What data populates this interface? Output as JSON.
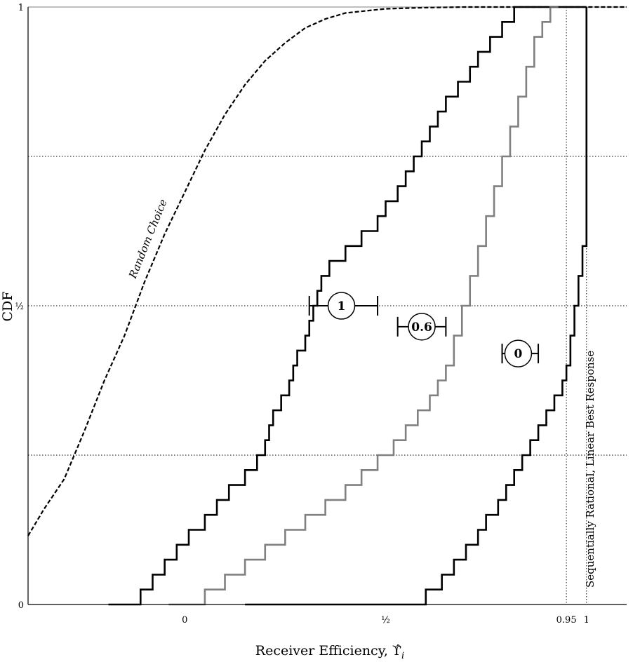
{
  "chart_data": {
    "type": "line",
    "title": "",
    "xlabel": "Receiver Efficiency, ϒ̂",
    "xlabel_subscript": "i",
    "ylabel": "CDF",
    "xlim": [
      -0.39,
      1.1
    ],
    "ylim": [
      0,
      1
    ],
    "x_ticks": [
      {
        "value": 0,
        "label": "0"
      },
      {
        "value": 0.5,
        "label": "½"
      },
      {
        "value": 0.95,
        "label": "0.95"
      },
      {
        "value": 1,
        "label": "1"
      }
    ],
    "y_ticks": [
      {
        "value": 0,
        "label": "0"
      },
      {
        "value": 0.5,
        "label": "½"
      },
      {
        "value": 1,
        "label": "1"
      }
    ],
    "grid": "dotted horizontal at 0.25, 0.5, 0.75",
    "reference_lines": [
      {
        "x": 0.95,
        "label": ""
      },
      {
        "x": 1.0,
        "label": "Sequentially Rational, Linear Best Response"
      }
    ],
    "series": [
      {
        "name": "Random Choice",
        "style": "dashed",
        "color": "#000000",
        "x": [
          -0.39,
          -0.35,
          -0.3,
          -0.25,
          -0.2,
          -0.15,
          -0.1,
          -0.05,
          0.0,
          0.05,
          0.1,
          0.15,
          0.2,
          0.25,
          0.3,
          0.35,
          0.4,
          0.5,
          0.6,
          0.7,
          0.8,
          1.1
        ],
        "y": [
          0.115,
          0.16,
          0.21,
          0.29,
          0.375,
          0.45,
          0.54,
          0.62,
          0.69,
          0.76,
          0.82,
          0.87,
          0.91,
          0.94,
          0.965,
          0.98,
          0.99,
          0.997,
          0.999,
          1.0,
          1.0,
          1.0
        ]
      },
      {
        "name": "1",
        "style": "step",
        "color": "#000000",
        "x": [
          -0.14,
          -0.11,
          -0.08,
          -0.05,
          -0.02,
          0.01,
          0.05,
          0.08,
          0.11,
          0.15,
          0.18,
          0.2,
          0.21,
          0.22,
          0.24,
          0.26,
          0.27,
          0.28,
          0.3,
          0.31,
          0.32,
          0.33,
          0.34,
          0.36,
          0.4,
          0.44,
          0.48,
          0.5,
          0.53,
          0.55,
          0.57,
          0.59,
          0.61,
          0.63,
          0.65,
          0.68,
          0.71,
          0.73,
          0.76,
          0.79,
          0.82,
          0.86,
          0.91,
          0.94,
          0.97,
          1.0
        ],
        "y": [
          0.0,
          0.025,
          0.05,
          0.075,
          0.1,
          0.125,
          0.15,
          0.175,
          0.2,
          0.225,
          0.25,
          0.275,
          0.3,
          0.325,
          0.35,
          0.375,
          0.4,
          0.425,
          0.45,
          0.475,
          0.5,
          0.525,
          0.55,
          0.575,
          0.6,
          0.625,
          0.65,
          0.675,
          0.7,
          0.725,
          0.75,
          0.775,
          0.8,
          0.825,
          0.85,
          0.875,
          0.9,
          0.925,
          0.95,
          0.975,
          1.0,
          1.0,
          1.0,
          1.0,
          1.0,
          1.0
        ]
      },
      {
        "name": "0.6",
        "style": "step",
        "color": "#808080",
        "x": [
          0.01,
          0.05,
          0.1,
          0.15,
          0.2,
          0.25,
          0.3,
          0.35,
          0.4,
          0.44,
          0.48,
          0.52,
          0.55,
          0.58,
          0.61,
          0.63,
          0.65,
          0.67,
          0.69,
          0.71,
          0.73,
          0.75,
          0.77,
          0.79,
          0.81,
          0.83,
          0.85,
          0.87,
          0.89,
          0.91,
          0.93
        ],
        "y": [
          0.0,
          0.025,
          0.05,
          0.075,
          0.1,
          0.125,
          0.15,
          0.175,
          0.2,
          0.225,
          0.25,
          0.275,
          0.3,
          0.325,
          0.35,
          0.375,
          0.4,
          0.45,
          0.5,
          0.55,
          0.6,
          0.65,
          0.7,
          0.75,
          0.8,
          0.85,
          0.9,
          0.95,
          0.975,
          1.0,
          1.0
        ]
      },
      {
        "name": "0",
        "style": "step",
        "color": "#000000",
        "x": [
          0.2,
          0.4,
          0.6,
          0.64,
          0.67,
          0.7,
          0.73,
          0.75,
          0.78,
          0.8,
          0.82,
          0.84,
          0.86,
          0.88,
          0.9,
          0.92,
          0.94,
          0.95,
          0.96,
          0.97,
          0.98,
          0.99,
          1.0,
          1.0
        ],
        "y": [
          0.0,
          0.0,
          0.025,
          0.05,
          0.075,
          0.1,
          0.125,
          0.15,
          0.175,
          0.2,
          0.225,
          0.25,
          0.275,
          0.3,
          0.325,
          0.35,
          0.375,
          0.4,
          0.45,
          0.5,
          0.55,
          0.6,
          0.8,
          1.0
        ]
      }
    ],
    "intervals": [
      {
        "label": "1",
        "center": 0.39,
        "low": 0.31,
        "high": 0.48,
        "y": 0.5
      },
      {
        "label": "0.6",
        "center": 0.59,
        "low": 0.53,
        "high": 0.65,
        "y": 0.465
      },
      {
        "label": "0",
        "center": 0.83,
        "low": 0.79,
        "high": 0.88,
        "y": 0.42
      }
    ]
  }
}
